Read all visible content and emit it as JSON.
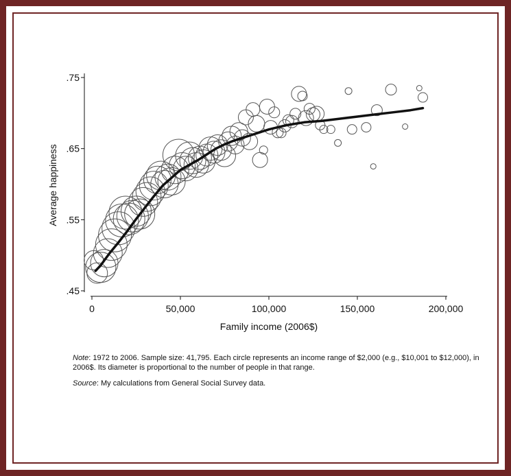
{
  "notes": {
    "note_label": "Note",
    "note_text": ": 1972 to 2006. Sample size: 41,795. Each circle represents an income range of $2,000 (e.g., $10,001 to $12,000), in 2006$. Its diameter is proportional to the number of people in that range.",
    "source_label": "Source",
    "source_text": ": My calculations from General Social Survey data."
  },
  "colors": {
    "border": "#6e2424",
    "ink": "#111111",
    "circle": "#555555"
  },
  "chart_data": {
    "type": "scatter",
    "title": "",
    "xlabel": "Family income (2006$)",
    "ylabel": "Average happiness",
    "xlim": [
      0,
      200000
    ],
    "ylim": [
      0.45,
      0.75
    ],
    "xticks": [
      0,
      50000,
      100000,
      150000,
      200000
    ],
    "xtick_labels": [
      "0",
      "50,000",
      "100,000",
      "150,000",
      "200,000"
    ],
    "yticks": [
      0.45,
      0.55,
      0.65,
      0.75
    ],
    "ytick_labels": [
      ".45",
      ".55",
      ".65",
      ".75"
    ],
    "grid": false,
    "series": [
      {
        "kind": "bubbles",
        "points": [
          {
            "x": 1000,
            "y": 0.493,
            "size": 14
          },
          {
            "x": 3000,
            "y": 0.475,
            "size": 15
          },
          {
            "x": 5000,
            "y": 0.483,
            "size": 22
          },
          {
            "x": 7000,
            "y": 0.489,
            "size": 20
          },
          {
            "x": 9000,
            "y": 0.503,
            "size": 21
          },
          {
            "x": 11000,
            "y": 0.515,
            "size": 23
          },
          {
            "x": 13000,
            "y": 0.528,
            "size": 24
          },
          {
            "x": 15000,
            "y": 0.538,
            "size": 24
          },
          {
            "x": 17000,
            "y": 0.549,
            "size": 24
          },
          {
            "x": 19000,
            "y": 0.56,
            "size": 24
          },
          {
            "x": 21000,
            "y": 0.551,
            "size": 23
          },
          {
            "x": 23000,
            "y": 0.555,
            "size": 23
          },
          {
            "x": 25000,
            "y": 0.562,
            "size": 22
          },
          {
            "x": 27000,
            "y": 0.558,
            "size": 22
          },
          {
            "x": 29000,
            "y": 0.575,
            "size": 21
          },
          {
            "x": 31000,
            "y": 0.582,
            "size": 21
          },
          {
            "x": 33000,
            "y": 0.59,
            "size": 21
          },
          {
            "x": 35000,
            "y": 0.598,
            "size": 21
          },
          {
            "x": 37000,
            "y": 0.606,
            "size": 20
          },
          {
            "x": 39000,
            "y": 0.612,
            "size": 21
          },
          {
            "x": 41000,
            "y": 0.6,
            "size": 20
          },
          {
            "x": 43000,
            "y": 0.61,
            "size": 19
          },
          {
            "x": 45000,
            "y": 0.604,
            "size": 20
          },
          {
            "x": 47000,
            "y": 0.62,
            "size": 20
          },
          {
            "x": 49000,
            "y": 0.641,
            "size": 23
          },
          {
            "x": 51000,
            "y": 0.626,
            "size": 19
          },
          {
            "x": 53000,
            "y": 0.622,
            "size": 18
          },
          {
            "x": 55000,
            "y": 0.64,
            "size": 20
          },
          {
            "x": 57000,
            "y": 0.633,
            "size": 19
          },
          {
            "x": 59000,
            "y": 0.627,
            "size": 18
          },
          {
            "x": 61000,
            "y": 0.637,
            "size": 17
          },
          {
            "x": 63000,
            "y": 0.632,
            "size": 17
          },
          {
            "x": 65000,
            "y": 0.641,
            "size": 16
          },
          {
            "x": 67000,
            "y": 0.65,
            "size": 17
          },
          {
            "x": 69000,
            "y": 0.645,
            "size": 16
          },
          {
            "x": 71000,
            "y": 0.655,
            "size": 15
          },
          {
            "x": 73000,
            "y": 0.648,
            "size": 15
          },
          {
            "x": 75000,
            "y": 0.64,
            "size": 16
          },
          {
            "x": 77000,
            "y": 0.66,
            "size": 14
          },
          {
            "x": 79000,
            "y": 0.668,
            "size": 14
          },
          {
            "x": 81000,
            "y": 0.655,
            "size": 13
          },
          {
            "x": 83000,
            "y": 0.674,
            "size": 13
          },
          {
            "x": 85000,
            "y": 0.665,
            "size": 12
          },
          {
            "x": 87000,
            "y": 0.694,
            "size": 11
          },
          {
            "x": 89000,
            "y": 0.66,
            "size": 12
          },
          {
            "x": 91000,
            "y": 0.705,
            "size": 10
          },
          {
            "x": 93000,
            "y": 0.685,
            "size": 12
          },
          {
            "x": 95000,
            "y": 0.634,
            "size": 11
          },
          {
            "x": 97000,
            "y": 0.648,
            "size": 6
          },
          {
            "x": 99000,
            "y": 0.709,
            "size": 11
          },
          {
            "x": 101000,
            "y": 0.68,
            "size": 10
          },
          {
            "x": 103000,
            "y": 0.701,
            "size": 8
          },
          {
            "x": 105000,
            "y": 0.673,
            "size": 8
          },
          {
            "x": 107000,
            "y": 0.672,
            "size": 7
          },
          {
            "x": 109000,
            "y": 0.682,
            "size": 9
          },
          {
            "x": 111000,
            "y": 0.69,
            "size": 8
          },
          {
            "x": 113000,
            "y": 0.688,
            "size": 9
          },
          {
            "x": 115000,
            "y": 0.699,
            "size": 8
          },
          {
            "x": 117000,
            "y": 0.727,
            "size": 11
          },
          {
            "x": 119000,
            "y": 0.724,
            "size": 7
          },
          {
            "x": 121000,
            "y": 0.693,
            "size": 11
          },
          {
            "x": 123000,
            "y": 0.706,
            "size": 8
          },
          {
            "x": 125000,
            "y": 0.698,
            "size": 10
          },
          {
            "x": 127000,
            "y": 0.699,
            "size": 11
          },
          {
            "x": 129000,
            "y": 0.683,
            "size": 7
          },
          {
            "x": 131000,
            "y": 0.677,
            "size": 6
          },
          {
            "x": 135000,
            "y": 0.677,
            "size": 6
          },
          {
            "x": 139000,
            "y": 0.658,
            "size": 5
          },
          {
            "x": 145000,
            "y": 0.731,
            "size": 5
          },
          {
            "x": 147000,
            "y": 0.677,
            "size": 7
          },
          {
            "x": 155000,
            "y": 0.68,
            "size": 7
          },
          {
            "x": 159000,
            "y": 0.625,
            "size": 4
          },
          {
            "x": 161000,
            "y": 0.704,
            "size": 8
          },
          {
            "x": 169000,
            "y": 0.733,
            "size": 8
          },
          {
            "x": 177000,
            "y": 0.681,
            "size": 4
          },
          {
            "x": 185000,
            "y": 0.735,
            "size": 4
          },
          {
            "x": 187000,
            "y": 0.722,
            "size": 7
          }
        ]
      },
      {
        "kind": "smooth_line",
        "x": [
          2000,
          5000,
          10000,
          15000,
          20000,
          25000,
          30000,
          35000,
          40000,
          45000,
          50000,
          55000,
          60000,
          65000,
          70000,
          75000,
          80000,
          85000,
          90000,
          95000,
          100000,
          105000,
          110000,
          115000,
          120000,
          125000,
          130000,
          140000,
          150000,
          160000,
          170000,
          180000,
          187000
        ],
        "y": [
          0.478,
          0.486,
          0.503,
          0.518,
          0.534,
          0.551,
          0.567,
          0.583,
          0.598,
          0.609,
          0.62,
          0.627,
          0.634,
          0.642,
          0.65,
          0.656,
          0.661,
          0.665,
          0.669,
          0.673,
          0.677,
          0.68,
          0.683,
          0.685,
          0.687,
          0.688,
          0.689,
          0.692,
          0.695,
          0.698,
          0.701,
          0.704,
          0.707
        ]
      }
    ]
  }
}
